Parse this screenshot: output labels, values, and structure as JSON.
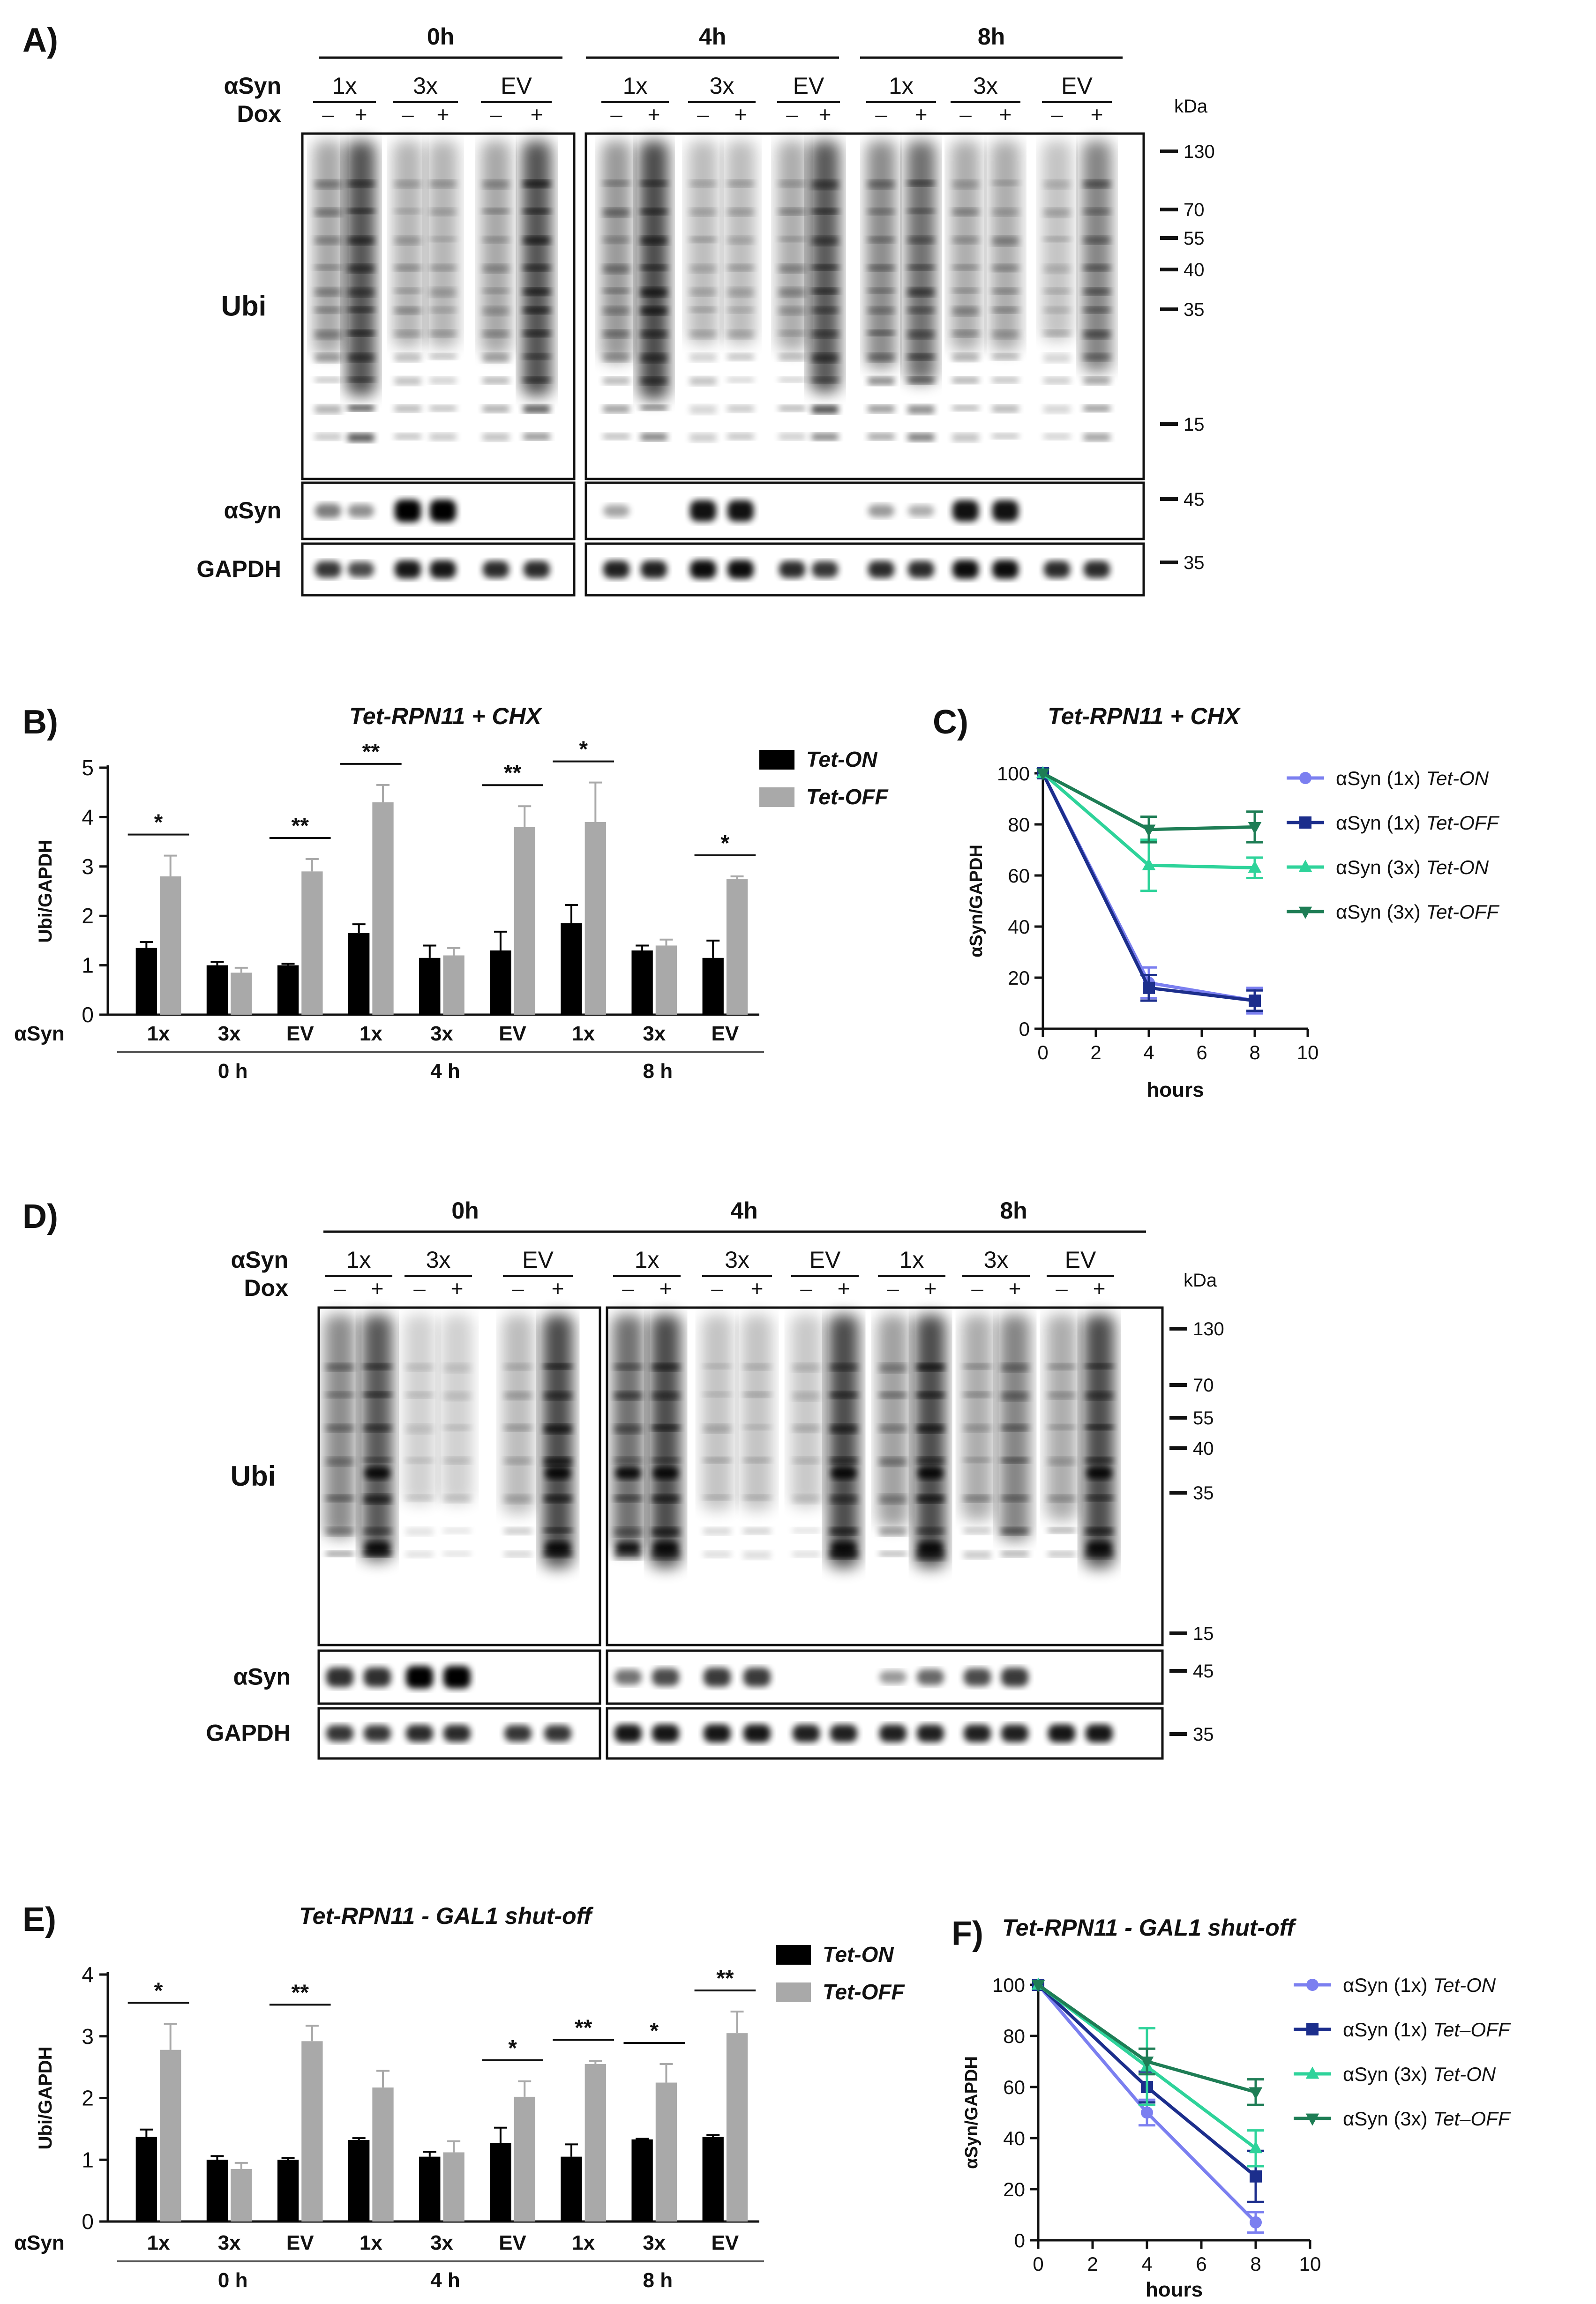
{
  "panels": {
    "A": {
      "label": "A)",
      "times": [
        "0h",
        "4h",
        "8h"
      ],
      "row_asyn": "αSyn",
      "row_dox": "Dox",
      "lanes": [
        "1x",
        "3x",
        "EV"
      ],
      "dox_signs": [
        "–",
        "+"
      ],
      "blots": [
        "Ubi",
        "αSyn",
        "GAPDH"
      ],
      "kda_unit": "kDa",
      "markers": [
        "130",
        "70",
        "55",
        "40",
        "35",
        "15",
        "45",
        "35"
      ]
    },
    "D": {
      "label": "D)",
      "times": [
        "0h",
        "4h",
        "8h"
      ],
      "row_asyn": "αSyn",
      "row_dox": "Dox",
      "lanes": [
        "1x",
        "3x",
        "EV"
      ],
      "dox_signs": [
        "–",
        "+"
      ],
      "blots": [
        "Ubi",
        "αSyn",
        "GAPDH"
      ],
      "kda_unit": "kDa",
      "markers": [
        "130",
        "70",
        "55",
        "40",
        "35",
        "15",
        "45",
        "35"
      ]
    },
    "B": {
      "label": "B)"
    },
    "C": {
      "label": "C)"
    },
    "E": {
      "label": "E)"
    },
    "F": {
      "label": "F)"
    }
  },
  "chart_data": [
    {
      "panel": "B",
      "type": "bar",
      "title": "Tet-RPN11 + CHX",
      "ylabel": "Ubi/GAPDH",
      "ylim": [
        0,
        5
      ],
      "yticks": [
        "0",
        "1",
        "2",
        "3",
        "4",
        "5"
      ],
      "x_row_label": "αSyn",
      "categories": [
        "1x",
        "3x",
        "EV",
        "1x",
        "3x",
        "EV",
        "1x",
        "3x",
        "EV"
      ],
      "groups": [
        "0 h",
        "4 h",
        "8 h"
      ],
      "series": [
        {
          "name": "Tet-ON",
          "color": "#000000",
          "values": [
            1.35,
            1.0,
            1.0,
            1.65,
            1.15,
            1.3,
            1.85,
            1.3,
            1.15
          ],
          "errors": [
            0.12,
            0.07,
            0.03,
            0.18,
            0.25,
            0.38,
            0.37,
            0.1,
            0.35
          ]
        },
        {
          "name": "Tet-OFF",
          "color": "#a9a9a9",
          "values": [
            2.8,
            0.85,
            2.9,
            4.3,
            1.2,
            3.8,
            3.9,
            1.4,
            2.75
          ],
          "errors": [
            0.42,
            0.1,
            0.25,
            0.35,
            0.15,
            0.42,
            0.8,
            0.12,
            0.05
          ]
        }
      ],
      "significance": [
        {
          "category": 0,
          "mark": "*"
        },
        {
          "category": 2,
          "mark": "**"
        },
        {
          "category": 3,
          "mark": "**"
        },
        {
          "category": 5,
          "mark": "**"
        },
        {
          "category": 6,
          "mark": "*"
        },
        {
          "category": 8,
          "mark": "*"
        }
      ]
    },
    {
      "panel": "C",
      "type": "line",
      "title": "Tet-RPN11 + CHX",
      "xlabel": "hours",
      "ylabel": "αSyn/GAPDH",
      "xlim": [
        0,
        10
      ],
      "ylim": [
        0,
        100
      ],
      "xticks": [
        "0",
        "2",
        "4",
        "6",
        "8",
        "10"
      ],
      "yticks": [
        "0",
        "20",
        "40",
        "60",
        "80",
        "100"
      ],
      "x": [
        0,
        4,
        8
      ],
      "series": [
        {
          "name_prefix": "αSyn (1x) ",
          "name_suffix": "Tet-ON",
          "color": "#7b7ff0",
          "marker": "circle",
          "values": [
            100,
            18,
            11
          ],
          "errors": [
            0,
            6,
            5
          ]
        },
        {
          "name_prefix": "αSyn (1x) ",
          "name_suffix": "Tet-OFF",
          "color": "#1c2e8c",
          "marker": "square",
          "values": [
            100,
            16,
            11
          ],
          "errors": [
            0,
            5,
            4
          ]
        },
        {
          "name_prefix": "αSyn (3x) ",
          "name_suffix": "Tet-ON",
          "color": "#2ed39a",
          "marker": "triangle-up",
          "values": [
            100,
            64,
            63
          ],
          "errors": [
            0,
            10,
            4
          ]
        },
        {
          "name_prefix": "αSyn (3x) ",
          "name_suffix": "Tet-OFF",
          "color": "#1e7d55",
          "marker": "triangle-down",
          "values": [
            100,
            78,
            79
          ],
          "errors": [
            0,
            5,
            6
          ]
        }
      ]
    },
    {
      "panel": "E",
      "type": "bar",
      "title": "Tet-RPN11 - GAL1 shut-off",
      "ylabel": "Ubi/GAPDH",
      "ylim": [
        0,
        4
      ],
      "yticks": [
        "0",
        "1",
        "2",
        "3",
        "4"
      ],
      "x_row_label": "αSyn",
      "categories": [
        "1x",
        "3x",
        "EV",
        "1x",
        "3x",
        "EV",
        "1x",
        "3x",
        "EV"
      ],
      "groups": [
        "0 h",
        "4 h",
        "8 h"
      ],
      "series": [
        {
          "name": "Tet-ON",
          "color": "#000000",
          "values": [
            1.37,
            1.0,
            1.0,
            1.32,
            1.05,
            1.27,
            1.05,
            1.33,
            1.37
          ],
          "errors": [
            0.12,
            0.06,
            0.03,
            0.03,
            0.08,
            0.25,
            0.2,
            0.01,
            0.03
          ]
        },
        {
          "name": "Tet-OFF",
          "color": "#a9a9a9",
          "values": [
            2.78,
            0.85,
            2.92,
            2.17,
            1.12,
            2.02,
            2.55,
            2.25,
            3.05
          ],
          "errors": [
            0.42,
            0.1,
            0.25,
            0.27,
            0.18,
            0.25,
            0.05,
            0.3,
            0.35
          ]
        }
      ],
      "significance": [
        {
          "category": 0,
          "mark": "*"
        },
        {
          "category": 2,
          "mark": "**"
        },
        {
          "category": 5,
          "mark": "*"
        },
        {
          "category": 6,
          "mark": "**"
        },
        {
          "category": 7,
          "mark": "*"
        },
        {
          "category": 8,
          "mark": "**"
        }
      ]
    },
    {
      "panel": "F",
      "type": "line",
      "title": "Tet-RPN11 - GAL1 shut-off",
      "xlabel": "hours",
      "ylabel": "αSyn/GAPDH",
      "xlim": [
        0,
        10
      ],
      "ylim": [
        0,
        100
      ],
      "xticks": [
        "0",
        "2",
        "4",
        "6",
        "8",
        "10"
      ],
      "yticks": [
        "0",
        "20",
        "40",
        "60",
        "80",
        "100"
      ],
      "x": [
        0,
        4,
        8
      ],
      "series": [
        {
          "name_prefix": "αSyn (1x) ",
          "name_suffix": "Tet-ON",
          "color": "#7b7ff0",
          "marker": "circle",
          "values": [
            100,
            50,
            7
          ],
          "errors": [
            0,
            5,
            4
          ]
        },
        {
          "name_prefix": "αSyn (1x) ",
          "name_suffix": "Tet–OFF",
          "color": "#1c2e8c",
          "marker": "square",
          "values": [
            100,
            60,
            25
          ],
          "errors": [
            0,
            6,
            10
          ]
        },
        {
          "name_prefix": "αSyn (3x) ",
          "name_suffix": "Tet-ON",
          "color": "#2ed39a",
          "marker": "triangle-up",
          "values": [
            100,
            68,
            36
          ],
          "errors": [
            0,
            15,
            7
          ]
        },
        {
          "name_prefix": "αSyn (3x) ",
          "name_suffix": "Tet–OFF",
          "color": "#1e7d55",
          "marker": "triangle-down",
          "values": [
            100,
            70,
            58
          ],
          "errors": [
            0,
            5,
            5
          ]
        }
      ]
    }
  ]
}
